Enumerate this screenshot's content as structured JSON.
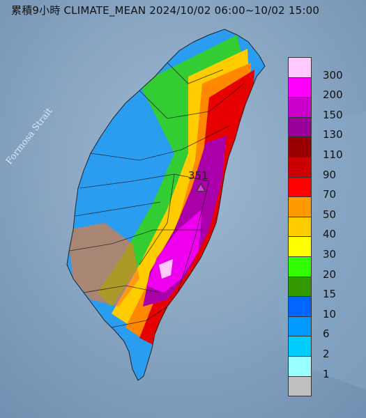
{
  "title": "累積9小時 CLIMATE_MEAN 2024/10/02 06:00~10/02 15:00",
  "sea_label": "Formosa Strait",
  "max_station": {
    "value": "351"
  },
  "legend": [
    {
      "label": "300",
      "color": "#ffc8ff"
    },
    {
      "label": "200",
      "color": "#ff00ff"
    },
    {
      "label": "150",
      "color": "#cc00cc"
    },
    {
      "label": "130",
      "color": "#990099"
    },
    {
      "label": "110",
      "color": "#990000"
    },
    {
      "label": "90",
      "color": "#cc0000"
    },
    {
      "label": "70",
      "color": "#ff0000"
    },
    {
      "label": "50",
      "color": "#ff9900"
    },
    {
      "label": "40",
      "color": "#ffcc00"
    },
    {
      "label": "30",
      "color": "#ffff00"
    },
    {
      "label": "20",
      "color": "#33ff00"
    },
    {
      "label": "15",
      "color": "#339900"
    },
    {
      "label": "10",
      "color": "#0066ff"
    },
    {
      "label": "6",
      "color": "#0099ff"
    },
    {
      "label": "2",
      "color": "#00ccff"
    },
    {
      "label": "1",
      "color": "#99ffff"
    },
    {
      "label": "",
      "color": "#c0c0c0"
    }
  ]
}
